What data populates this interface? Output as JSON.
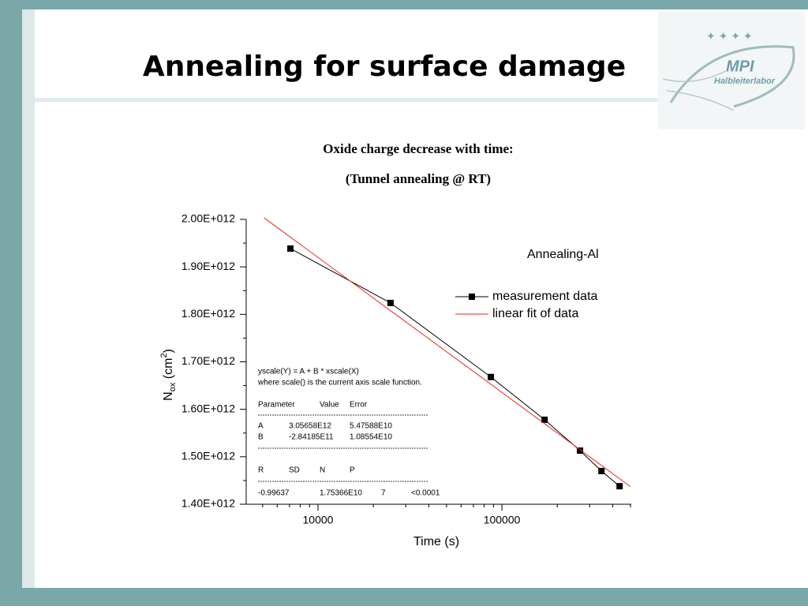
{
  "slide": {
    "title": "Annealing for surface damage",
    "logo": [
      "MPI",
      "Halbleiterlabor"
    ]
  },
  "chart_data": {
    "type": "line",
    "title": "Oxide charge decrease with time:",
    "subtitle": "(Tunnel annealing @ RT)",
    "xlabel": "Time (s)",
    "ylabel": [
      "N",
      "ox",
      " (cm",
      "2",
      ")"
    ],
    "xscale": "log",
    "xlim": [
      4070,
      505000
    ],
    "xticks": [
      10000,
      100000
    ],
    "xminorticks": [
      5000,
      6000,
      7000,
      8000,
      9000,
      20000,
      30000,
      40000,
      50000,
      60000,
      70000,
      80000,
      90000,
      200000,
      300000,
      400000,
      500000
    ],
    "ylim": [
      1400000000000.0,
      2000000000000.0
    ],
    "yticks": [
      {
        "value": 1400000000000.0,
        "label": "1.40E+012"
      },
      {
        "value": 1500000000000.0,
        "label": "1.50E+012"
      },
      {
        "value": 1600000000000.0,
        "label": "1.60E+012"
      },
      {
        "value": 1700000000000.0,
        "label": "1.70E+012"
      },
      {
        "value": 1800000000000.0,
        "label": "1.80E+012"
      },
      {
        "value": 1900000000000.0,
        "label": "1.90E+012"
      },
      {
        "value": 2000000000000.0,
        "label": "2.00E+012"
      }
    ],
    "yminorticks": [
      1450000000000.0,
      1550000000000.0,
      1650000000000.0,
      1750000000000.0,
      1850000000000.0,
      1950000000000.0
    ],
    "legend_title": "Annealing-Al",
    "legend": "upper right",
    "series": [
      {
        "name": "measurement data",
        "color": "#000000",
        "marker": "square",
        "x": [
          7080,
          24800,
          87100,
          170600,
          266000,
          347600,
          436500
        ],
        "values": [
          1938500000000.0,
          1824000000000.0,
          1668000000000.0,
          1578000000000.0,
          1513000000000.0,
          1470000000000.0,
          1438000000000.0
        ]
      },
      {
        "name": "linear fit of data",
        "color": "#e8281e",
        "marker": "none",
        "x": [
          5100,
          500000
        ],
        "values": [
          2003000000000.0,
          1437000000000.0
        ]
      }
    ],
    "fit_box": {
      "lines": [
        "yscale(Y) = A + B * xscale(X)",
        "where scale() is the current axis scale function."
      ],
      "rows": [
        [
          "Parameter",
          "Value",
          "Error"
        ],
        [
          "A",
          "3.05658E12",
          "5.47588E10"
        ],
        [
          "B",
          "-2.84185E11",
          "1.08554E10"
        ],
        [
          "R",
          "SD",
          "N",
          "P"
        ],
        [
          "-0.99637",
          "1.75366E10",
          "7",
          "<0.0001"
        ]
      ]
    }
  }
}
